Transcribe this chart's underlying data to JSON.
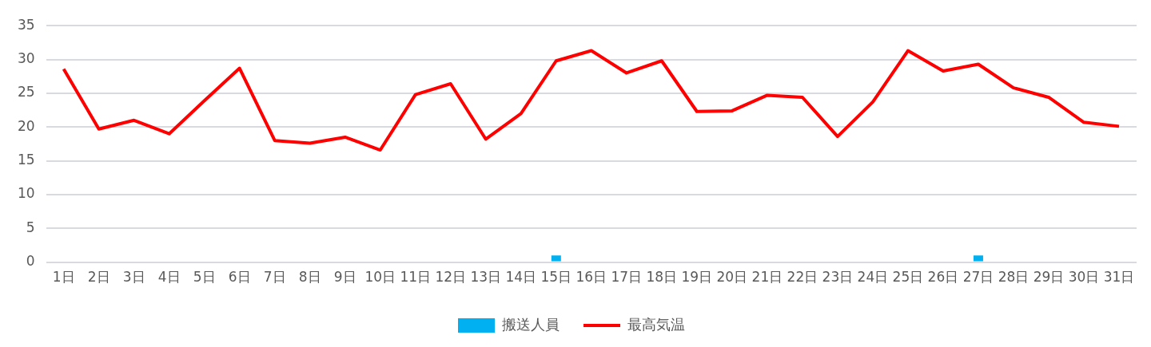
{
  "chart_data": {
    "type": "line",
    "categories": [
      "1日",
      "2日",
      "3日",
      "4日",
      "5日",
      "6日",
      "7日",
      "8日",
      "9日",
      "10日",
      "11日",
      "12日",
      "13日",
      "14日",
      "15日",
      "16日",
      "17日",
      "18日",
      "19日",
      "20日",
      "21日",
      "22日",
      "23日",
      "24日",
      "25日",
      "26日",
      "27日",
      "28日",
      "29日",
      "30日",
      "31日"
    ],
    "series": [
      {
        "name": "搬送人員",
        "type": "bar",
        "color": "#00b0f0",
        "values": [
          0,
          0,
          0,
          0,
          0,
          0,
          0,
          0,
          0,
          0,
          0,
          0,
          0,
          0,
          1,
          0,
          0,
          0,
          0,
          0,
          0,
          0,
          0,
          0,
          0,
          0,
          1,
          0,
          0,
          0,
          0
        ]
      },
      {
        "name": "最高気温",
        "color": "#ff0000",
        "values": [
          28.6,
          19.7,
          21.0,
          19.0,
          23.9,
          28.7,
          18.0,
          17.6,
          18.5,
          16.6,
          24.8,
          26.4,
          18.2,
          22.0,
          29.8,
          31.3,
          28.0,
          29.8,
          22.3,
          22.4,
          24.7,
          24.4,
          18.6,
          23.7,
          31.3,
          28.3,
          29.3,
          25.8,
          24.4,
          20.7,
          20.1
        ]
      }
    ],
    "ylim": [
      0,
      35
    ],
    "yticks": [
      0,
      5,
      10,
      15,
      20,
      25,
      30,
      35
    ],
    "grid": "y",
    "legend": "bottom",
    "marker": "none",
    "line_style": "solid"
  }
}
